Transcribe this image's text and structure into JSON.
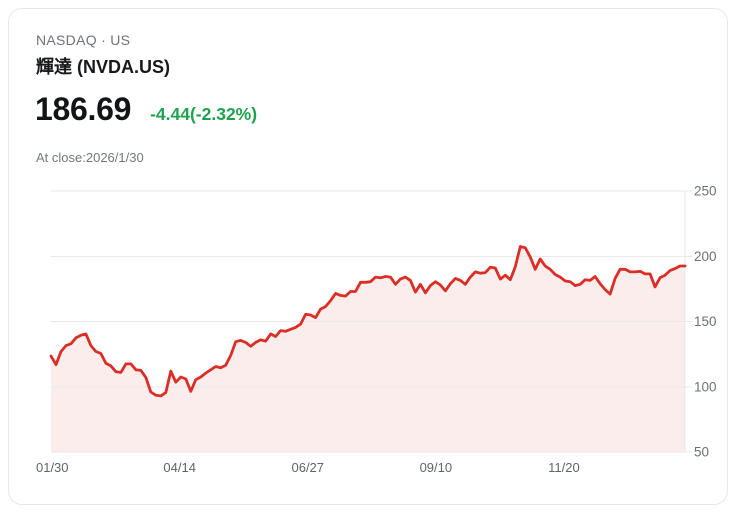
{
  "header": {
    "exchange_line": "NASDAQ · US",
    "title": "輝達 (NVDA.US)",
    "price": "186.69",
    "change": "-4.44(-2.32%)",
    "as_of": "At close:2026/1/30"
  },
  "colors": {
    "change_green": "#1fa24d",
    "line_red": "#db2e26",
    "area_pink": "#fbedeb",
    "grid_gray": "#e9e9eb",
    "card_border": "#e6e8eb"
  },
  "chart_data": {
    "type": "area",
    "title": "NVDA.US 1-year price",
    "xlabel": "",
    "ylabel": "",
    "ylim": [
      50,
      250
    ],
    "y_ticks": [
      250,
      200,
      150,
      100,
      50
    ],
    "y_axis_side": "right",
    "grid": true,
    "legend": "none",
    "x_tick_labels": [
      "01/30",
      "04/14",
      "06/27",
      "09/10",
      "11/20"
    ],
    "x_tick_positions": [
      0.002,
      0.203,
      0.405,
      0.607,
      0.809
    ],
    "line_color": "#db2e26",
    "fill_color": "#fbedeb",
    "grid_color": "#e9e9eb",
    "values": [
      123.5,
      117,
      127,
      131.5,
      133,
      137.5,
      139.5,
      140.5,
      131.5,
      127,
      125.5,
      118,
      116,
      111.5,
      111,
      117.5,
      117.5,
      113,
      112.5,
      107,
      96,
      93.5,
      93,
      95.5,
      112,
      103.5,
      107.5,
      106,
      96.5,
      105.5,
      107.5,
      110.5,
      113,
      115.5,
      114.5,
      116.5,
      124,
      134.5,
      135.5,
      134,
      131,
      134,
      136,
      135,
      140.5,
      138.5,
      143,
      142.5,
      144,
      145.5,
      148,
      155.5,
      155,
      153,
      159.5,
      161.5,
      166,
      171.5,
      170,
      169.5,
      173,
      173,
      180,
      180,
      180.5,
      184,
      183.5,
      184.5,
      184,
      178.5,
      182.5,
      184,
      181.5,
      172.5,
      178.5,
      172,
      177.5,
      180.5,
      178,
      173.5,
      179,
      183,
      181.5,
      178.5,
      184,
      188,
      187,
      187.5,
      191.5,
      191,
      182.5,
      185.5,
      182,
      192,
      207.5,
      206.5,
      199.5,
      190,
      198,
      192.5,
      190,
      186,
      184,
      181,
      180.5,
      177.5,
      178.5,
      182,
      181.5,
      184.5,
      179,
      174.5,
      171,
      183,
      190,
      190,
      188,
      188,
      188.5,
      186.5,
      186.5,
      176.5,
      183.5,
      185.5,
      189,
      190.5,
      192.5,
      192.5
    ]
  }
}
